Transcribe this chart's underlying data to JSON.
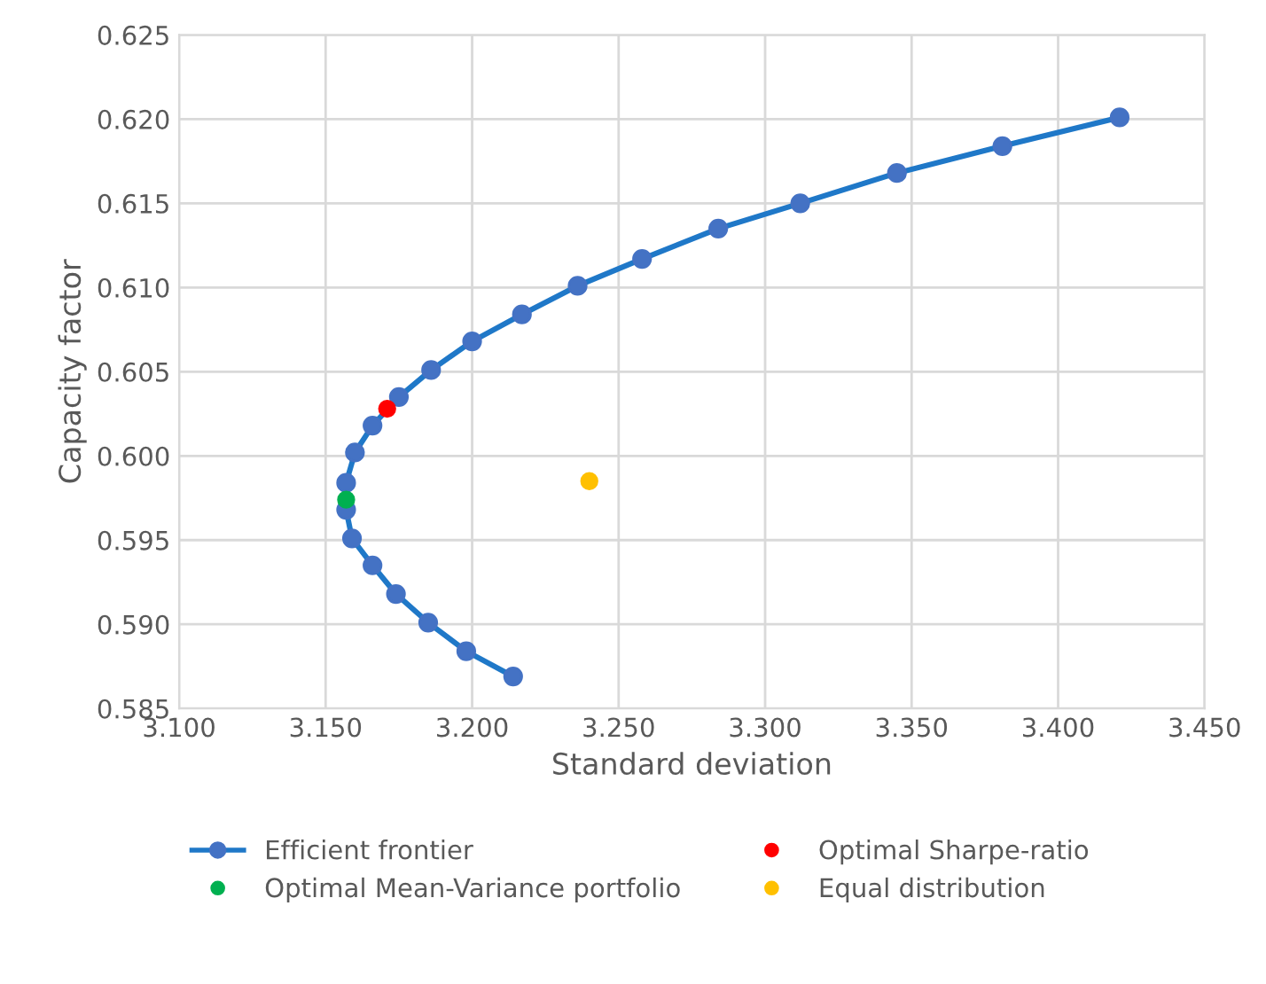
{
  "chart_data": {
    "type": "line",
    "xlabel": "Standard deviation",
    "ylabel": "Capacity factor",
    "xlim": [
      3.1,
      3.45
    ],
    "xticks": [
      {
        "value": 3.1,
        "label": "3.100"
      },
      {
        "value": 3.15,
        "label": "3.150"
      },
      {
        "value": 3.2,
        "label": "3.200"
      },
      {
        "value": 3.25,
        "label": "3.250"
      },
      {
        "value": 3.3,
        "label": "3.300"
      },
      {
        "value": 3.35,
        "label": "3.350"
      },
      {
        "value": 3.4,
        "label": "3.400"
      },
      {
        "value": 3.45,
        "label": "3.450"
      }
    ],
    "ylim": [
      0.585,
      0.625
    ],
    "yticks": [
      {
        "value": 0.585,
        "label": "0.585"
      },
      {
        "value": 0.59,
        "label": "0.590"
      },
      {
        "value": 0.595,
        "label": "0.595"
      },
      {
        "value": 0.6,
        "label": "0.600"
      },
      {
        "value": 0.605,
        "label": "0.605"
      },
      {
        "value": 0.61,
        "label": "0.610"
      },
      {
        "value": 0.615,
        "label": "0.615"
      },
      {
        "value": 0.62,
        "label": "0.620"
      },
      {
        "value": 0.625,
        "label": "0.625"
      }
    ],
    "grid": true,
    "legend": "bottom",
    "marker": "circle",
    "series": [
      {
        "name": "Efficient frontier",
        "color": "#4472c4",
        "x": [
          3.421,
          3.381,
          3.345,
          3.312,
          3.284,
          3.258,
          3.236,
          3.217,
          3.2,
          3.186,
          3.175,
          3.166,
          3.16,
          3.157,
          3.157,
          3.159,
          3.166,
          3.174,
          3.185,
          3.198,
          3.214
        ],
        "values": [
          0.6201,
          0.6184,
          0.6168,
          0.615,
          0.6135,
          0.6117,
          0.6101,
          0.6084,
          0.6068,
          0.6051,
          0.6035,
          0.6018,
          0.6002,
          0.5984,
          0.5968,
          0.5951,
          0.5935,
          0.5918,
          0.5901,
          0.5884,
          0.5869
        ]
      },
      {
        "name": "Optimal Sharpe-ratio",
        "type": "scatter",
        "color": "#ff0000",
        "x": [
          3.171
        ],
        "values": [
          0.6028
        ]
      },
      {
        "name": "Optimal Mean-Variance portfolio",
        "type": "scatter",
        "color": "#00b050",
        "x": [
          3.157
        ],
        "values": [
          0.5974
        ]
      },
      {
        "name": "Equal distribution",
        "type": "scatter",
        "color": "#ffc000",
        "x": [
          3.24
        ],
        "values": [
          0.5985
        ]
      }
    ]
  }
}
